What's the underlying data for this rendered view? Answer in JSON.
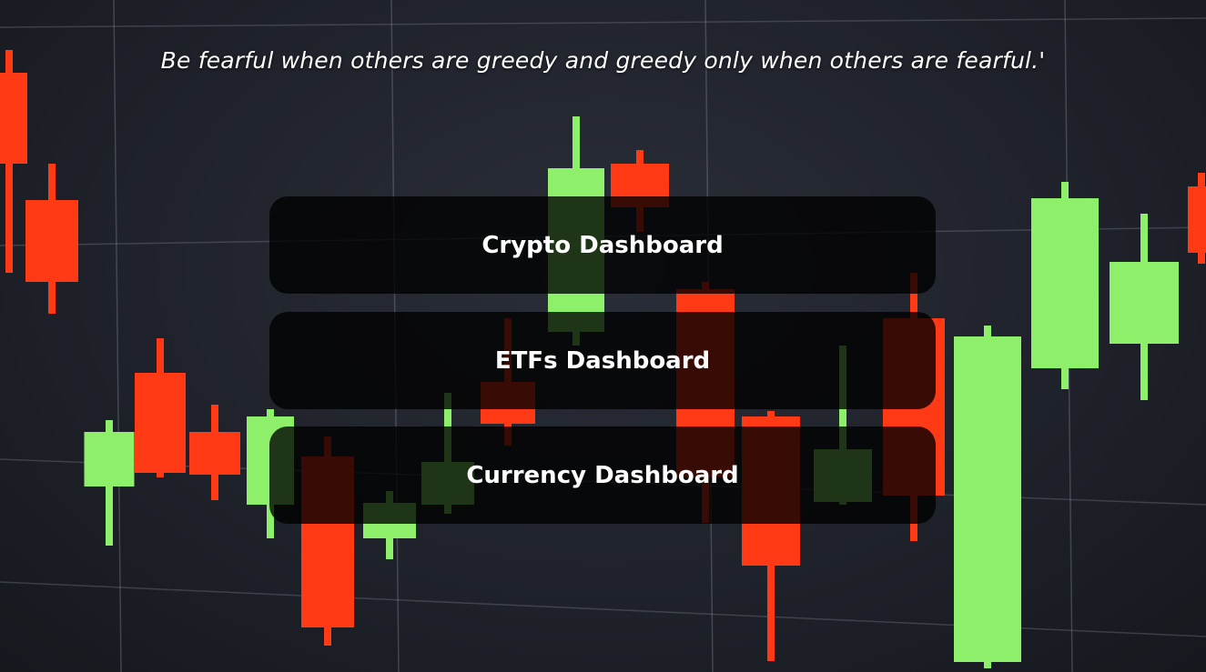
{
  "quote": "Be fearful when others are greedy and greedy only when others are fearful.'",
  "buttons": {
    "crypto": "Crypto Dashboard",
    "etfs": "ETFs Dashboard",
    "currency": "Currency Dashboard"
  },
  "background": {
    "description_icon": "candlestick-chart-background",
    "up_color": "#8ef06a",
    "down_color": "#ff3a14",
    "grid_color": "#8d93a3"
  }
}
